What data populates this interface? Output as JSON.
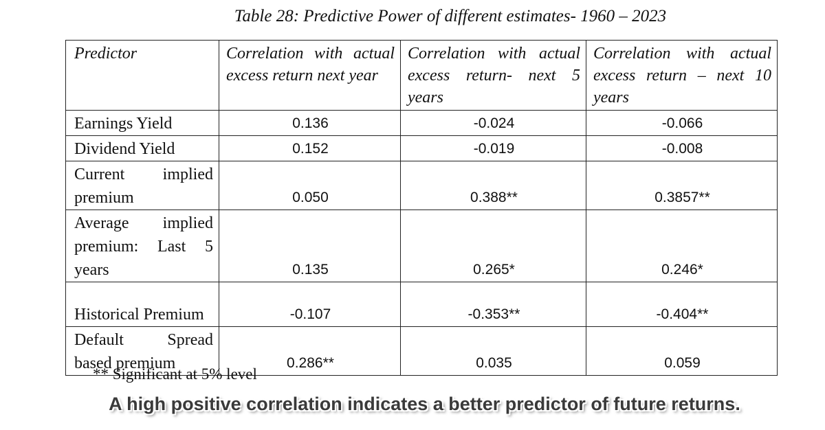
{
  "title": "Table 28: Predictive Power of different estimates- 1960 – 2023",
  "table": {
    "header": [
      "Predictor",
      "Correlation with actual excess return next year",
      "Correlation with actual excess return- next 5 years",
      "Correlation with actual excess return – next 10 years"
    ],
    "rows": [
      [
        "Earnings Yield",
        "0.136",
        "-0.024",
        "-0.066"
      ],
      [
        "Dividend Yield",
        "0.152",
        "-0.019",
        "-0.008"
      ],
      [
        "Current implied premium",
        "0.050",
        "0.388**",
        "0.3857**"
      ],
      [
        "Average implied premium: Last 5 years",
        "0.135",
        "0.265*",
        "0.246*"
      ],
      [
        "Historical Premium",
        "-0.107",
        "-0.353**",
        "-0.404**"
      ],
      [
        "Default Spread based premium",
        "0.286**",
        "0.035",
        "0.059"
      ]
    ]
  },
  "footnote": "** Significant at 5% level",
  "caption": "A high positive correlation indicates a better predictor of future returns."
}
